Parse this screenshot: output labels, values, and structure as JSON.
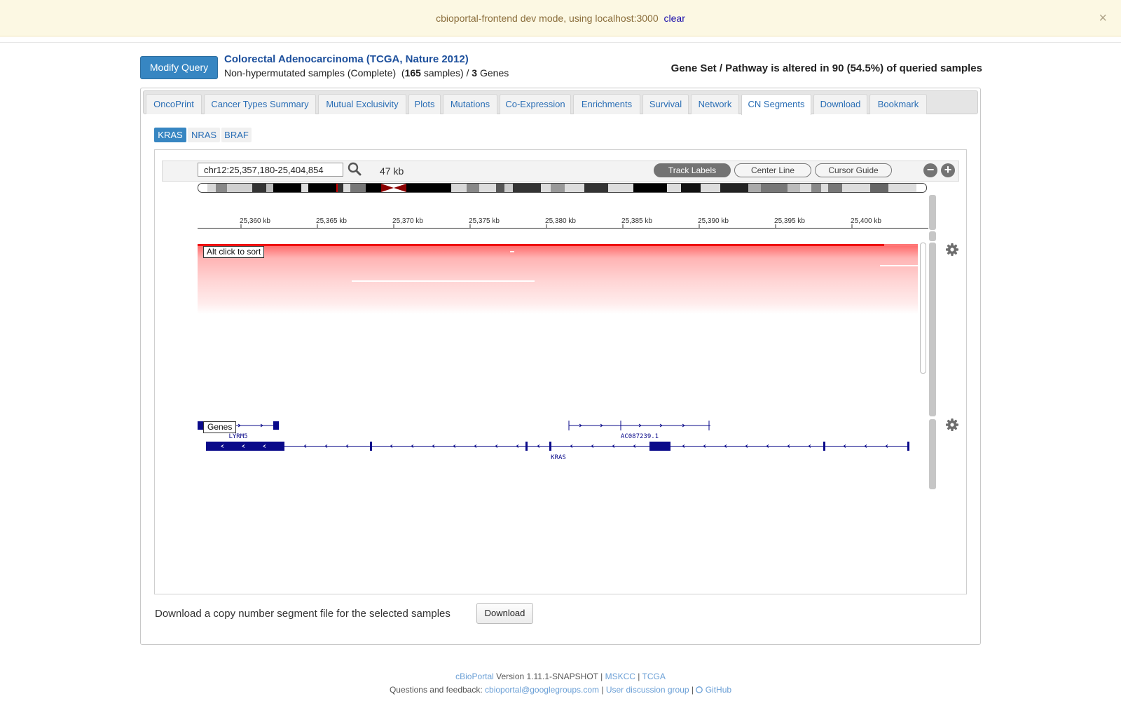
{
  "devbar": {
    "message": "cbioportal-frontend dev mode, using localhost:3000",
    "clear_label": "clear",
    "close_glyph": "×"
  },
  "header": {
    "modify_label": "Modify Query",
    "study_title": "Colorectal Adenocarcinoma (TCGA, Nature 2012)",
    "sample_set": "Non-hypermutated samples (Complete)",
    "sample_count": "165",
    "samples_word": "samples",
    "gene_count": "3",
    "genes_word": "Genes",
    "altered_text": "Gene Set / Pathway is altered in 90 (54.5%) of queried samples"
  },
  "tabs": [
    {
      "label": "OncoPrint",
      "active": false
    },
    {
      "label": "Cancer Types Summary",
      "active": false
    },
    {
      "label": "Mutual Exclusivity",
      "active": false
    },
    {
      "label": "Plots",
      "active": false
    },
    {
      "label": "Mutations",
      "active": false
    },
    {
      "label": "Co-Expression",
      "active": false
    },
    {
      "label": "Enrichments",
      "active": false
    },
    {
      "label": "Survival",
      "active": false
    },
    {
      "label": "Network",
      "active": false
    },
    {
      "label": "CN Segments",
      "active": true
    },
    {
      "label": "Download",
      "active": false
    },
    {
      "label": "Bookmark",
      "active": false
    }
  ],
  "gene_tabs": [
    {
      "label": "KRAS",
      "active": true
    },
    {
      "label": "NRAS",
      "active": false
    },
    {
      "label": "BRAF",
      "active": false
    }
  ],
  "igv": {
    "locus": "chr12:25,357,180-25,404,854",
    "width_label": "47 kb",
    "track_labels_btn": "Track Labels",
    "center_line_btn": "Center Line",
    "cursor_guide_btn": "Cursor Guide",
    "zoom_out": "−",
    "zoom_in": "+",
    "ruler_ticks": [
      "25,360 kb",
      "25,365 kb",
      "25,370 kb",
      "25,375 kb",
      "25,380 kb",
      "25,385 kb",
      "25,390 kb",
      "25,395 kb",
      "25,400 kb"
    ],
    "seg_track_label": "Alt click to sort",
    "genes_track_label": "Genes",
    "genes": [
      "LYRM5",
      "AC087239.1",
      "KRAS"
    ]
  },
  "download": {
    "text": "Download a copy number segment file for the selected samples",
    "button": "Download"
  },
  "footer": {
    "brand": "cBioPortal",
    "version": "Version 1.11.1-SNAPSHOT",
    "sep": "|",
    "mskcc": "MSKCC",
    "tcga": "TCGA",
    "feedback": "Questions and feedback:",
    "email": "cbioportal@googlegroups.com",
    "group": "User discussion group",
    "github": "GitHub"
  }
}
